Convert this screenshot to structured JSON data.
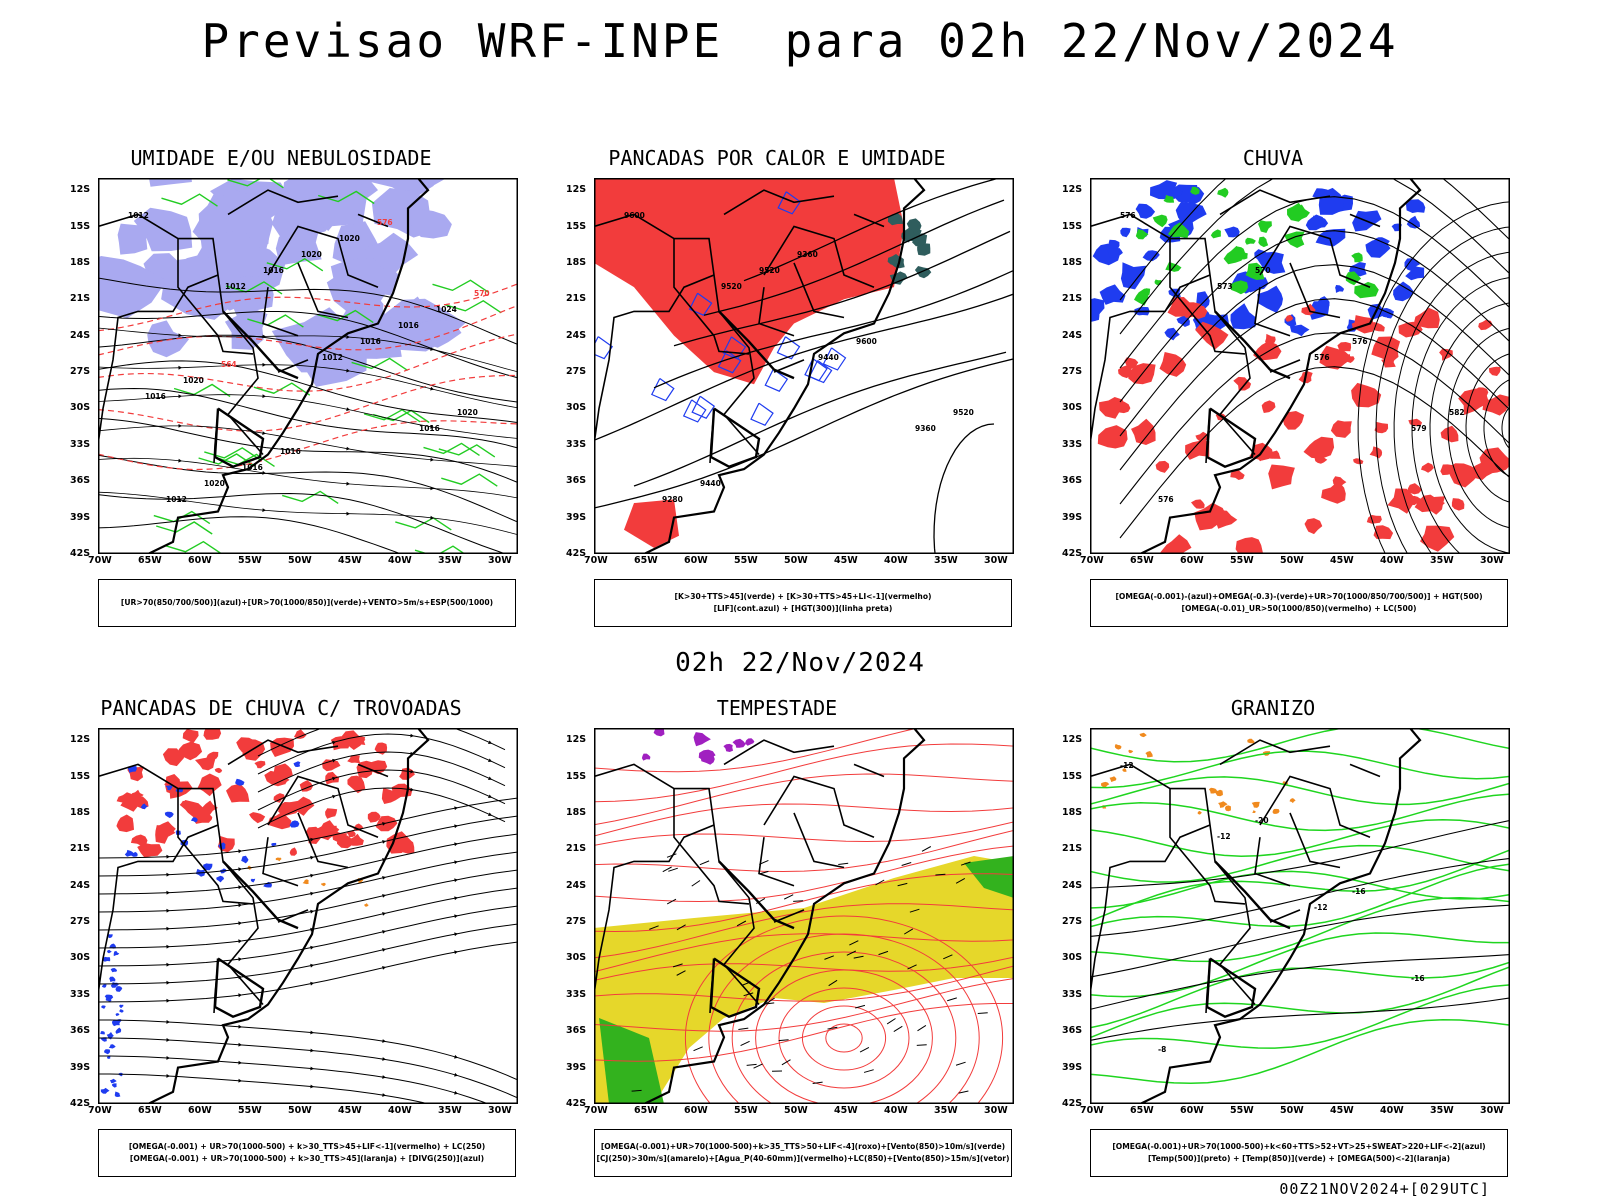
{
  "header": {
    "title": "Previsao WRF-INPE  para 02h 22/Nov/2024"
  },
  "mid_label": "02h 22/Nov/2024",
  "footer": "00Z21NOV2024+[029UTC]",
  "axes": {
    "lat_labels": [
      "12S",
      "15S",
      "18S",
      "21S",
      "24S",
      "27S",
      "30S",
      "33S",
      "36S",
      "39S",
      "42S"
    ],
    "lon_labels": [
      "70W",
      "65W",
      "60W",
      "55W",
      "50W",
      "45W",
      "40W",
      "35W",
      "30W"
    ]
  },
  "colors": {
    "blue_shade": "#a9a9f0",
    "green": "#22cc22",
    "red": "#f23c3c",
    "dark_teal": "#2f5d5d",
    "yellow": "#e6d72a",
    "blue": "#1f3cf0",
    "orange": "#f08a1e",
    "purple": "#a020c0"
  },
  "panels": [
    {
      "title": "UMIDADE E/OU NEBULOSIDADE",
      "legend": [
        "[UR>70(850/700/500)](azul)+[UR>70(1000/850)](verde)+VENTO>5m/s+ESP(500/1000)"
      ],
      "contour_labels": [
        "1012",
        "1012",
        "1012",
        "1016",
        "1012",
        "1016",
        "1016",
        "1020",
        "1020",
        "1020",
        "1016",
        "1016",
        "1016",
        "1020",
        "1024",
        "1020",
        "1016",
        "576",
        "570",
        "564"
      ]
    },
    {
      "title": "PANCADAS POR CALOR E UMIDADE",
      "legend": [
        "[K>30+TTS>45](verde) + [K>30+TTS>45+LI<-1](vermelho)",
        "[LIF](cont.azul) + [HGT(300)](linha preta)"
      ],
      "contour_labels": [
        "9600",
        "9520",
        "9440",
        "9360",
        "9280",
        "9520",
        "9600",
        "9520",
        "9440",
        "9360"
      ]
    },
    {
      "title": "CHUVA",
      "legend": [
        "[OMEGA(-0.001)-(azul)+OMEGA(-0.3)-(verde)+UR>70(1000/850/700/500)] + HGT(500)",
        "[OMEGA(-0.01)_UR>50(1000/850)(vermelho) + LC(500)"
      ],
      "contour_labels": [
        "576",
        "573",
        "576",
        "579",
        "576",
        "570",
        "576",
        "582"
      ]
    },
    {
      "title": "PANCADAS DE CHUVA C/ TROVOADAS",
      "legend": [
        "[OMEGA(-0.001) + UR>70(1000-500) + k>30_TTS>45+LIF<-1](vermelho) + LC(250)",
        "[OMEGA(-0.001) + UR>70(1000-500) + k>30_TTS>45](laranja) + [DIVG(250)](azul)"
      ],
      "contour_labels": []
    },
    {
      "title": "TEMPESTADE",
      "legend": [
        "[OMEGA(-0.001)+UR>70(1000-500)+k>35_TTS>50+LIF<-4](roxo)+[Vento(850)>10m/s](verde)",
        "[CJ(250)>30m/s](amarelo)+[Agua_P(40-60mm)](vermelho)+LC(850)+[Vento(850)>15m/s](vetor)"
      ],
      "contour_labels": []
    },
    {
      "title": "GRANIZO",
      "legend": [
        "[OMEGA(-0.001)+UR>70(1000-500)+k<60+TTS>52+VT>25+SWEAT>220+LIF<-2](azul)",
        "[Temp(500)](preto) + [Temp(850)](verde) + [OMEGA(500)<-2](laranja)"
      ],
      "contour_labels": [
        "-12",
        "-12",
        "-12",
        "-16",
        "-8",
        "-20",
        "-16"
      ]
    }
  ]
}
